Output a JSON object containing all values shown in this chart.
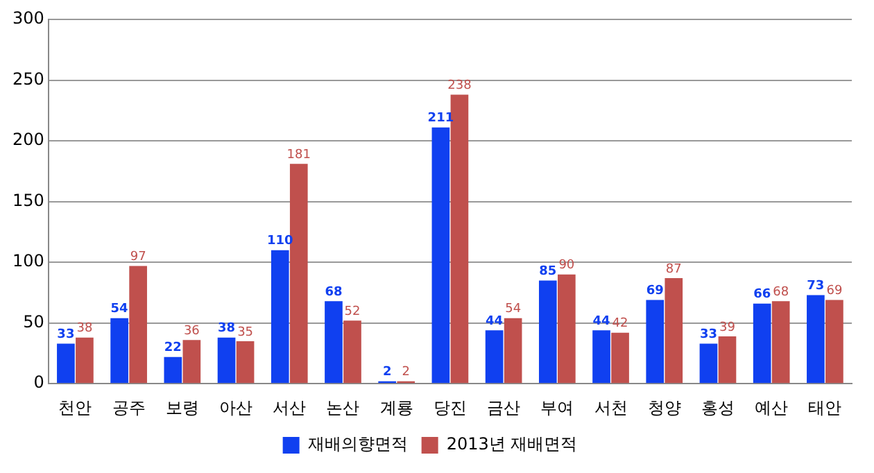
{
  "chart_data": {
    "type": "bar",
    "categories": [
      "천안",
      "공주",
      "보령",
      "아산",
      "서산",
      "논산",
      "계룡",
      "당진",
      "금산",
      "부여",
      "서천",
      "청양",
      "홍성",
      "예산",
      "태안"
    ],
    "series": [
      {
        "name": "재배의향면적",
        "color": "#1040f0",
        "values": [
          33,
          54,
          22,
          38,
          110,
          68,
          2,
          211,
          44,
          85,
          44,
          69,
          33,
          66,
          73
        ]
      },
      {
        "name": "2013년 재배면적",
        "color": "#c0504d",
        "values": [
          38,
          97,
          36,
          35,
          181,
          52,
          2,
          238,
          54,
          90,
          42,
          87,
          39,
          68,
          69
        ]
      }
    ],
    "ylim": [
      0,
      300
    ],
    "yticks": [
      0,
      50,
      100,
      150,
      200,
      250,
      300
    ],
    "grid": "y",
    "legend": "bottom",
    "data_labels": true
  }
}
